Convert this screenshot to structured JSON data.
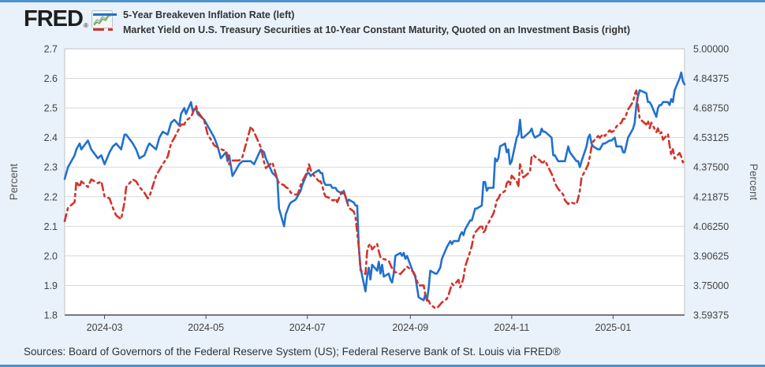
{
  "page": {
    "background_color": "#e9f2fb",
    "accent_bar_color": "#4e92cc"
  },
  "header": {
    "logo_text": "FRED",
    "logo_registered": "®",
    "legend_items": [
      {
        "label": "5-Year Breakeven Inflation Rate (left)",
        "color": "#2071ce",
        "style": "solid"
      },
      {
        "label": "Market Yield on U.S. Treasury Securities at 10-Year Constant Maturity, Quoted on an Investment Basis (right)",
        "color": "#d0342c",
        "style": "dashed"
      }
    ]
  },
  "footer": {
    "sources": "Sources: Board of Governors of the Federal Reserve System (US); Federal Reserve Bank of St. Louis via FRED®"
  },
  "chart_data": {
    "type": "line",
    "grid": "horizontal",
    "legend_position": "top",
    "x_range": [
      "2024-02-06",
      "2025-02-13"
    ],
    "x_ticks": [
      {
        "label": "2024-03",
        "date": "2024-03-01"
      },
      {
        "label": "2024-05",
        "date": "2024-05-01"
      },
      {
        "label": "2024-07",
        "date": "2024-07-01"
      },
      {
        "label": "2024-09",
        "date": "2024-09-01"
      },
      {
        "label": "2024-11",
        "date": "2024-11-01"
      },
      {
        "label": "2025-01",
        "date": "2025-01-01"
      }
    ],
    "left_axis": {
      "title": "Percent",
      "min": 1.8,
      "max": 2.7,
      "tick_labels": [
        "2.7",
        "2.6",
        "2.5",
        "2.4",
        "2.3",
        "2.2",
        "2.1",
        "2.0",
        "1.9",
        "1.8"
      ]
    },
    "right_axis": {
      "title": "Percent",
      "min": 3.59375,
      "max": 5.0,
      "tick_labels": [
        "5.00000",
        "4.84375",
        "4.68750",
        "4.53125",
        "4.37500",
        "4.21875",
        "4.06250",
        "3.90625",
        "3.75000",
        "3.59375"
      ]
    },
    "dates": [
      "2024-02-06",
      "2024-02-08",
      "2024-02-12",
      "2024-02-13",
      "2024-02-15",
      "2024-02-16",
      "2024-02-20",
      "2024-02-22",
      "2024-02-26",
      "2024-02-28",
      "2024-03-01",
      "2024-03-04",
      "2024-03-06",
      "2024-03-08",
      "2024-03-11",
      "2024-03-13",
      "2024-03-14",
      "2024-03-18",
      "2024-03-20",
      "2024-03-22",
      "2024-03-25",
      "2024-03-27",
      "2024-03-28",
      "2024-04-01",
      "2024-04-03",
      "2024-04-05",
      "2024-04-08",
      "2024-04-10",
      "2024-04-12",
      "2024-04-15",
      "2024-04-16",
      "2024-04-18",
      "2024-04-19",
      "2024-04-22",
      "2024-04-23",
      "2024-04-25",
      "2024-04-26",
      "2024-04-30",
      "2024-05-02",
      "2024-05-06",
      "2024-05-08",
      "2024-05-10",
      "2024-05-13",
      "2024-05-14",
      "2024-05-15",
      "2024-05-17",
      "2024-05-21",
      "2024-05-23",
      "2024-05-28",
      "2024-05-30",
      "2024-06-03",
      "2024-06-05",
      "2024-06-06",
      "2024-06-10",
      "2024-06-12",
      "2024-06-13",
      "2024-06-14",
      "2024-06-17",
      "2024-06-18",
      "2024-06-20",
      "2024-06-21",
      "2024-06-24",
      "2024-06-25",
      "2024-06-26",
      "2024-06-27",
      "2024-06-28",
      "2024-07-01",
      "2024-07-02",
      "2024-07-03",
      "2024-07-05",
      "2024-07-08",
      "2024-07-09",
      "2024-07-10",
      "2024-07-11",
      "2024-07-12",
      "2024-07-15",
      "2024-07-16",
      "2024-07-17",
      "2024-07-18",
      "2024-07-19",
      "2024-07-22",
      "2024-07-23",
      "2024-07-24",
      "2024-07-25",
      "2024-07-26",
      "2024-07-29",
      "2024-07-30",
      "2024-07-31",
      "2024-08-01",
      "2024-08-02",
      "2024-08-05",
      "2024-08-06",
      "2024-08-07",
      "2024-08-08",
      "2024-08-09",
      "2024-08-12",
      "2024-08-13",
      "2024-08-14",
      "2024-08-15",
      "2024-08-16",
      "2024-08-19",
      "2024-08-20",
      "2024-08-21",
      "2024-08-22",
      "2024-08-23",
      "2024-08-26",
      "2024-08-27",
      "2024-08-28",
      "2024-08-29",
      "2024-08-30",
      "2024-09-03",
      "2024-09-04",
      "2024-09-06",
      "2024-09-09",
      "2024-09-10",
      "2024-09-11",
      "2024-09-12",
      "2024-09-13",
      "2024-09-16",
      "2024-09-17",
      "2024-09-18",
      "2024-09-19",
      "2024-09-20",
      "2024-09-23",
      "2024-09-24",
      "2024-09-25",
      "2024-09-26",
      "2024-09-27",
      "2024-09-30",
      "2024-10-01",
      "2024-10-02",
      "2024-10-03",
      "2024-10-04",
      "2024-10-07",
      "2024-10-08",
      "2024-10-09",
      "2024-10-10",
      "2024-10-11",
      "2024-10-14",
      "2024-10-15",
      "2024-10-16",
      "2024-10-17",
      "2024-10-18",
      "2024-10-21",
      "2024-10-22",
      "2024-10-23",
      "2024-10-24",
      "2024-10-25",
      "2024-10-28",
      "2024-10-29",
      "2024-10-30",
      "2024-10-31",
      "2024-11-01",
      "2024-11-04",
      "2024-11-05",
      "2024-11-06",
      "2024-11-07",
      "2024-11-08",
      "2024-11-12",
      "2024-11-13",
      "2024-11-14",
      "2024-11-15",
      "2024-11-18",
      "2024-11-19",
      "2024-11-20",
      "2024-11-21",
      "2024-11-25",
      "2024-11-26",
      "2024-11-27",
      "2024-11-29",
      "2024-12-02",
      "2024-12-03",
      "2024-12-05",
      "2024-12-06",
      "2024-12-10",
      "2024-12-11",
      "2024-12-12",
      "2024-12-13",
      "2024-12-16",
      "2024-12-17",
      "2024-12-18",
      "2024-12-19",
      "2024-12-20",
      "2024-12-23",
      "2024-12-24",
      "2024-12-26",
      "2024-12-27",
      "2024-12-30",
      "2024-12-31",
      "2025-01-02",
      "2025-01-03",
      "2025-01-06",
      "2025-01-07",
      "2025-01-08",
      "2025-01-10",
      "2025-01-13",
      "2025-01-14",
      "2025-01-15",
      "2025-01-16",
      "2025-01-17",
      "2025-01-21",
      "2025-01-22",
      "2025-01-23",
      "2025-01-24",
      "2025-01-27",
      "2025-01-28",
      "2025-01-29",
      "2025-01-30",
      "2025-01-31",
      "2025-02-03",
      "2025-02-04",
      "2025-02-05",
      "2025-02-06",
      "2025-02-07",
      "2025-02-10",
      "2025-02-11",
      "2025-02-12",
      "2025-02-13"
    ],
    "series": [
      {
        "name": "5-Year Breakeven Inflation Rate",
        "data_name": "series-breakeven-line",
        "axis": "left",
        "color": "#2071ce",
        "dash": "solid",
        "values": [
          2.26,
          2.3,
          2.34,
          2.36,
          2.38,
          2.36,
          2.39,
          2.36,
          2.33,
          2.34,
          2.31,
          2.35,
          2.37,
          2.38,
          2.36,
          2.41,
          2.41,
          2.38,
          2.36,
          2.33,
          2.34,
          2.37,
          2.38,
          2.36,
          2.4,
          2.42,
          2.41,
          2.45,
          2.46,
          2.44,
          2.48,
          2.5,
          2.48,
          2.52,
          2.49,
          2.5,
          2.48,
          2.46,
          2.44,
          2.4,
          2.37,
          2.33,
          2.35,
          2.32,
          2.34,
          2.27,
          2.31,
          2.32,
          2.32,
          2.31,
          2.36,
          2.35,
          2.33,
          2.28,
          2.27,
          2.26,
          2.16,
          2.1,
          2.14,
          2.17,
          2.18,
          2.19,
          2.2,
          2.21,
          2.22,
          2.24,
          2.28,
          2.28,
          2.27,
          2.28,
          2.29,
          2.28,
          2.28,
          2.25,
          2.24,
          2.24,
          2.23,
          2.23,
          2.23,
          2.22,
          2.21,
          2.22,
          2.2,
          2.18,
          2.19,
          2.18,
          2.17,
          2.17,
          2.03,
          1.96,
          1.88,
          1.93,
          1.96,
          1.92,
          1.97,
          1.95,
          1.98,
          1.94,
          1.97,
          1.93,
          1.94,
          1.92,
          1.91,
          1.94,
          2.0,
          2.01,
          2.0,
          2.01,
          1.99,
          2.0,
          1.94,
          1.93,
          1.86,
          1.85,
          1.87,
          1.85,
          1.89,
          1.95,
          1.94,
          1.94,
          1.95,
          1.96,
          1.99,
          2.03,
          2.04,
          2.05,
          2.04,
          2.05,
          2.05,
          2.07,
          2.08,
          2.07,
          2.09,
          2.12,
          2.12,
          2.14,
          2.16,
          2.16,
          2.17,
          2.25,
          2.25,
          2.22,
          2.23,
          2.23,
          2.33,
          2.32,
          2.33,
          2.37,
          2.38,
          2.35,
          2.36,
          2.31,
          2.32,
          2.4,
          2.41,
          2.46,
          2.4,
          2.4,
          2.42,
          2.43,
          2.41,
          2.4,
          2.41,
          2.43,
          2.42,
          2.42,
          2.4,
          2.34,
          2.34,
          2.32,
          2.32,
          2.32,
          2.37,
          2.35,
          2.32,
          2.32,
          2.3,
          2.32,
          2.37,
          2.4,
          2.41,
          2.38,
          2.37,
          2.36,
          2.36,
          2.38,
          2.38,
          2.39,
          2.39,
          2.4,
          2.37,
          2.37,
          2.35,
          2.35,
          2.4,
          2.43,
          2.45,
          2.51,
          2.54,
          2.56,
          2.55,
          2.52,
          2.52,
          2.51,
          2.47,
          2.5,
          2.51,
          2.51,
          2.52,
          2.52,
          2.51,
          2.53,
          2.52,
          2.56,
          2.6,
          2.62,
          2.59,
          2.58
        ]
      },
      {
        "name": "Market Yield on U.S. Treasury Securities at 10-Year Constant Maturity, Quoted on an Investment Basis",
        "data_name": "series-treasury-line",
        "axis": "right",
        "color": "#d0342c",
        "dash": "dashed",
        "values": [
          4.09,
          4.16,
          4.19,
          4.3,
          4.27,
          4.3,
          4.27,
          4.31,
          4.29,
          4.3,
          4.22,
          4.21,
          4.16,
          4.12,
          4.1,
          4.19,
          4.27,
          4.31,
          4.3,
          4.27,
          4.24,
          4.21,
          4.22,
          4.33,
          4.36,
          4.39,
          4.43,
          4.5,
          4.53,
          4.58,
          4.6,
          4.6,
          4.62,
          4.64,
          4.66,
          4.7,
          4.67,
          4.62,
          4.55,
          4.49,
          4.48,
          4.47,
          4.46,
          4.44,
          4.39,
          4.41,
          4.41,
          4.43,
          4.59,
          4.56,
          4.48,
          4.4,
          4.37,
          4.4,
          4.34,
          4.31,
          4.29,
          4.28,
          4.27,
          4.26,
          4.24,
          4.23,
          4.23,
          4.25,
          4.28,
          4.3,
          4.35,
          4.39,
          4.36,
          4.33,
          4.3,
          4.3,
          4.28,
          4.24,
          4.22,
          4.21,
          4.2,
          4.2,
          4.21,
          4.19,
          4.25,
          4.24,
          4.22,
          4.19,
          4.16,
          4.14,
          4.11,
          4.03,
          3.95,
          3.83,
          3.81,
          3.93,
          3.96,
          3.97,
          3.94,
          3.97,
          3.93,
          3.9,
          3.89,
          3.89,
          3.88,
          3.86,
          3.84,
          3.83,
          3.82,
          3.81,
          3.82,
          3.83,
          3.84,
          3.85,
          3.82,
          3.8,
          3.75,
          3.75,
          3.7,
          3.67,
          3.67,
          3.65,
          3.63,
          3.63,
          3.64,
          3.65,
          3.66,
          3.68,
          3.7,
          3.73,
          3.76,
          3.75,
          3.78,
          3.74,
          3.76,
          3.79,
          3.85,
          3.93,
          3.96,
          4.01,
          4.03,
          4.04,
          4.07,
          4.03,
          4.04,
          4.07,
          4.08,
          4.13,
          4.16,
          4.2,
          4.21,
          4.23,
          4.25,
          4.29,
          4.3,
          4.28,
          4.33,
          4.3,
          4.27,
          4.39,
          4.36,
          4.32,
          4.35,
          4.43,
          4.44,
          4.43,
          4.41,
          4.4,
          4.4,
          4.41,
          4.34,
          4.32,
          4.29,
          4.26,
          4.23,
          4.2,
          4.18,
          4.19,
          4.18,
          4.21,
          4.25,
          4.32,
          4.37,
          4.39,
          4.43,
          4.48,
          4.51,
          4.54,
          4.53,
          4.55,
          4.54,
          4.57,
          4.56,
          4.57,
          4.59,
          4.61,
          4.63,
          4.63,
          4.68,
          4.72,
          4.76,
          4.78,
          4.7,
          4.63,
          4.6,
          4.62,
          4.58,
          4.61,
          4.56,
          4.58,
          4.55,
          4.56,
          4.52,
          4.55,
          4.49,
          4.44,
          4.47,
          4.42,
          4.45,
          4.43,
          4.4,
          4.42
        ]
      }
    ]
  }
}
